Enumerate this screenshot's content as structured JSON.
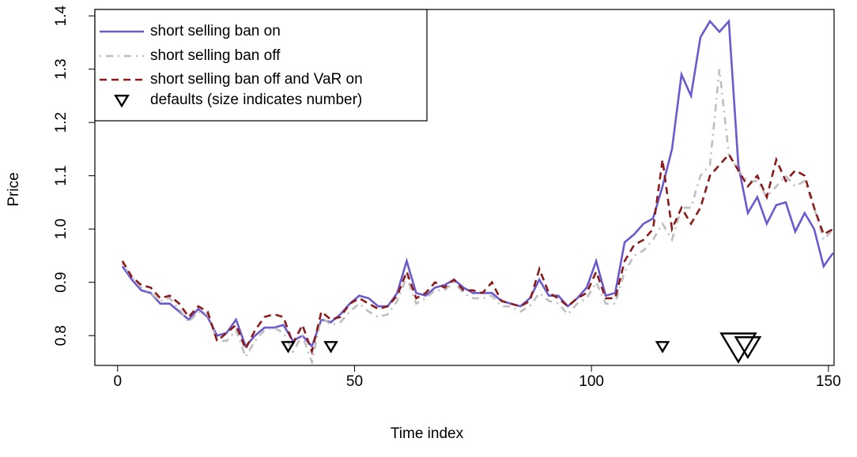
{
  "chart_data": {
    "type": "line",
    "x_label": "Time index",
    "y_label": "Price",
    "x": [
      1,
      3,
      5,
      7,
      9,
      11,
      13,
      15,
      17,
      19,
      21,
      23,
      25,
      27,
      29,
      31,
      33,
      35,
      37,
      39,
      41,
      43,
      45,
      47,
      49,
      51,
      53,
      55,
      57,
      59,
      61,
      63,
      65,
      67,
      69,
      71,
      73,
      75,
      77,
      79,
      81,
      83,
      85,
      87,
      89,
      91,
      93,
      95,
      97,
      99,
      101,
      103,
      105,
      107,
      109,
      111,
      113,
      115,
      117,
      119,
      121,
      123,
      125,
      127,
      129,
      131,
      133,
      135,
      137,
      139,
      141,
      143,
      145,
      147,
      149,
      151
    ],
    "series": [
      {
        "name": "short selling ban on",
        "color": "#6a5acd",
        "dash": "none",
        "values": [
          0.93,
          0.905,
          0.885,
          0.88,
          0.86,
          0.86,
          0.845,
          0.83,
          0.85,
          0.835,
          0.8,
          0.805,
          0.83,
          0.78,
          0.8,
          0.815,
          0.815,
          0.82,
          0.79,
          0.8,
          0.78,
          0.83,
          0.825,
          0.84,
          0.86,
          0.875,
          0.87,
          0.855,
          0.855,
          0.88,
          0.94,
          0.88,
          0.875,
          0.89,
          0.895,
          0.905,
          0.89,
          0.88,
          0.88,
          0.88,
          0.865,
          0.86,
          0.855,
          0.87,
          0.905,
          0.875,
          0.875,
          0.855,
          0.87,
          0.89,
          0.94,
          0.875,
          0.88,
          0.975,
          0.99,
          1.01,
          1.02,
          1.08,
          1.15,
          1.29,
          1.25,
          1.36,
          1.39,
          1.37,
          1.39,
          1.12,
          1.03,
          1.06,
          1.01,
          1.045,
          1.05,
          0.995,
          1.03,
          1.0,
          0.93,
          0.955
        ]
      },
      {
        "name": "short selling ban off",
        "color": "#bebebe",
        "dash": "2 6 9 6",
        "values": [
          0.935,
          0.91,
          0.89,
          0.88,
          0.865,
          0.87,
          0.85,
          0.825,
          0.845,
          0.84,
          0.79,
          0.79,
          0.81,
          0.76,
          0.79,
          0.81,
          0.815,
          0.805,
          0.77,
          0.8,
          0.75,
          0.835,
          0.82,
          0.825,
          0.845,
          0.86,
          0.845,
          0.835,
          0.84,
          0.865,
          0.91,
          0.86,
          0.87,
          0.885,
          0.885,
          0.9,
          0.88,
          0.87,
          0.87,
          0.875,
          0.855,
          0.855,
          0.845,
          0.855,
          0.88,
          0.865,
          0.86,
          0.84,
          0.86,
          0.87,
          0.9,
          0.86,
          0.86,
          0.92,
          0.95,
          0.96,
          0.98,
          1.01,
          0.98,
          1.04,
          1.04,
          1.1,
          1.12,
          1.3,
          1.14,
          1.11,
          1.09,
          1.09,
          1.06,
          1.08,
          1.1,
          1.08,
          1.09,
          1.04,
          0.98,
          1.0
        ]
      },
      {
        "name": "short selling ban off and VaR on",
        "color": "#8b1a1a",
        "dash": "9 6",
        "values": [
          0.94,
          0.91,
          0.895,
          0.89,
          0.87,
          0.875,
          0.86,
          0.835,
          0.855,
          0.845,
          0.79,
          0.805,
          0.82,
          0.775,
          0.81,
          0.835,
          0.84,
          0.835,
          0.785,
          0.82,
          0.77,
          0.845,
          0.83,
          0.835,
          0.86,
          0.87,
          0.86,
          0.85,
          0.855,
          0.875,
          0.92,
          0.87,
          0.88,
          0.9,
          0.89,
          0.905,
          0.885,
          0.885,
          0.88,
          0.9,
          0.865,
          0.86,
          0.855,
          0.865,
          0.925,
          0.88,
          0.87,
          0.855,
          0.87,
          0.88,
          0.92,
          0.87,
          0.87,
          0.94,
          0.97,
          0.98,
          1.0,
          1.13,
          1.0,
          1.04,
          1.01,
          1.04,
          1.1,
          1.12,
          1.14,
          1.11,
          1.08,
          1.1,
          1.06,
          1.13,
          1.09,
          1.11,
          1.1,
          1.04,
          0.99,
          1.0
        ]
      }
    ],
    "defaults": {
      "name": "defaults (size indicates number)",
      "color": "#000000",
      "x": [
        36,
        45,
        115,
        131,
        133
      ],
      "y": [
        0.78,
        0.78,
        0.78,
        0.78,
        0.78
      ],
      "sizes": [
        1,
        1,
        1,
        4,
        2
      ]
    },
    "xlim": [
      -4.8,
      151.2
    ],
    "xticks": [
      0,
      50,
      100,
      150
    ],
    "ylim": [
      0.744,
      1.412
    ],
    "yticks": [
      0.8,
      0.9,
      {
        "value": 1,
        "label": "1.0"
      },
      1.1,
      1.2,
      1.3,
      1.4
    ],
    "legend": "top-left"
  }
}
